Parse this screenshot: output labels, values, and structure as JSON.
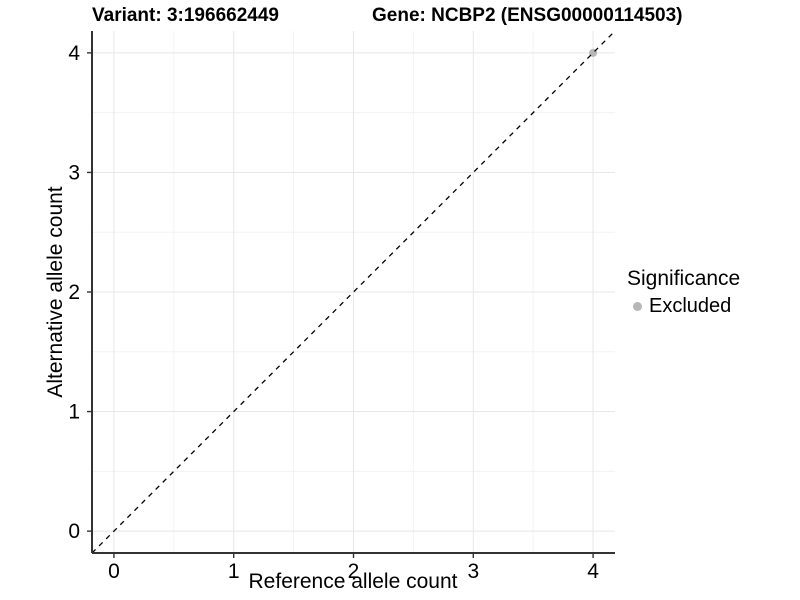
{
  "header": {
    "title_left": "Variant: 3:196662449",
    "title_right": "Gene: NCBP2 (ENSG00000114503)"
  },
  "chart_data": {
    "type": "scatter",
    "title_left": "Variant: 3:196662449",
    "title_right": "Gene: NCBP2 (ENSG00000114503)",
    "xlabel": "Reference allele count",
    "ylabel": "Alternative allele count",
    "xlim": [
      -0.183,
      4.183
    ],
    "ylim": [
      -0.183,
      4.183
    ],
    "x_ticks": [
      0,
      1,
      2,
      3,
      4
    ],
    "y_ticks": [
      0,
      1,
      2,
      3,
      4
    ],
    "x_minor_ticks": [
      0.5,
      1.5,
      2.5,
      3.5
    ],
    "y_minor_ticks": [
      0.5,
      1.5,
      2.5,
      3.5
    ],
    "grid": "major and minor, light gray on white",
    "legend_position": "right",
    "reference_line": {
      "meaning": "identity line y = x",
      "style": "dashed",
      "color": "#000000",
      "from": [
        -0.183,
        -0.183
      ],
      "to": [
        4.183,
        4.183
      ]
    },
    "series": [
      {
        "name": "Excluded",
        "color": "#b7b7b7",
        "points": [
          {
            "x": 4,
            "y": 4
          }
        ]
      }
    ],
    "legend": {
      "title": "Significance",
      "entries": [
        {
          "label": "Excluded",
          "color": "#b7b7b7"
        }
      ]
    },
    "colors": {
      "background": "#ffffff",
      "grid_major": "#e7e7e7",
      "grid_minor": "#f3f3f3",
      "axis_line": "#333333",
      "tick_text": "#000000",
      "point": "#b7b7b7",
      "reference_line": "#000000"
    }
  }
}
